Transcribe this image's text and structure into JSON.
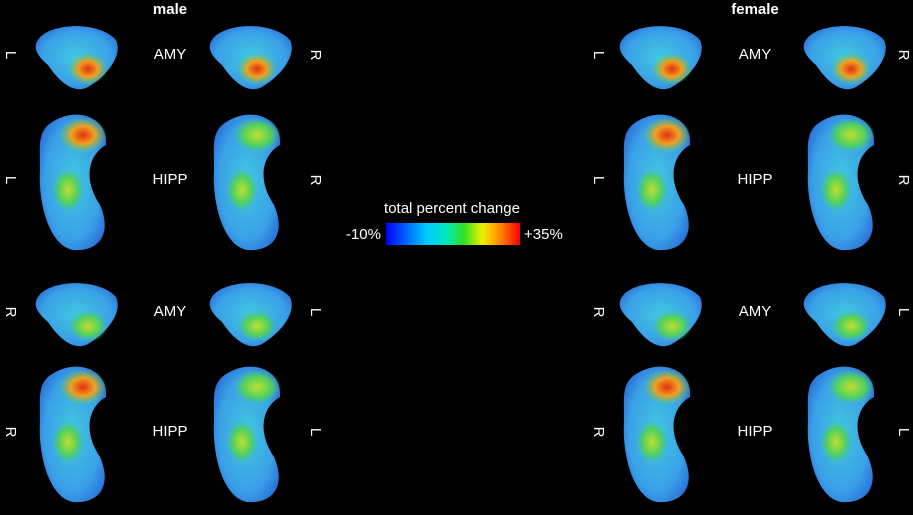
{
  "panels": [
    {
      "title": "male",
      "rows": [
        {
          "left": "L",
          "structure": "AMY",
          "right": "R"
        },
        {
          "left": "L",
          "structure": "HIPP",
          "right": "R"
        },
        {
          "left": "R",
          "structure": "AMY",
          "right": "L"
        },
        {
          "left": "R",
          "structure": "HIPP",
          "right": "L"
        }
      ]
    },
    {
      "title": "female",
      "rows": [
        {
          "left": "L",
          "structure": "AMY",
          "right": "R"
        },
        {
          "left": "L",
          "structure": "HIPP",
          "right": "R"
        },
        {
          "left": "R",
          "structure": "AMY",
          "right": "L"
        },
        {
          "left": "R",
          "structure": "HIPP",
          "right": "L"
        }
      ]
    }
  ],
  "colorbar": {
    "title": "total percent change",
    "min_label": "-10%",
    "max_label": "+35%"
  }
}
